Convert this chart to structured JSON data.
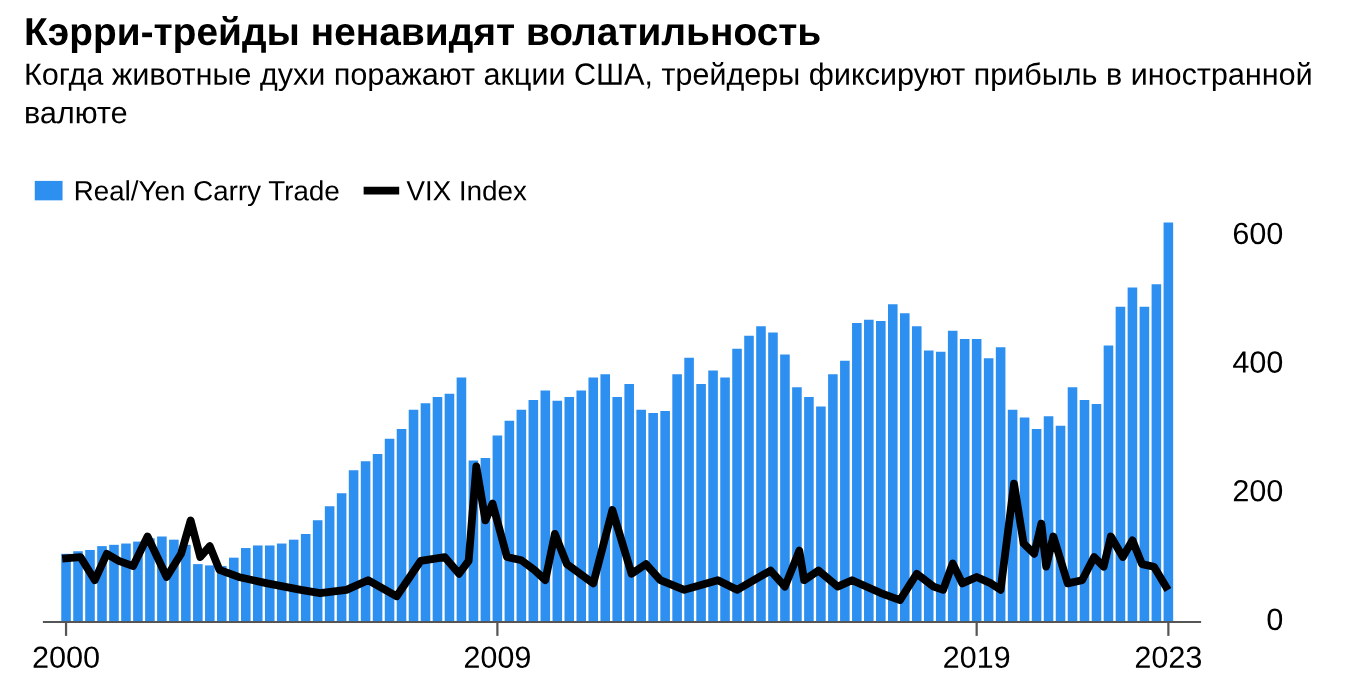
{
  "chart_data": {
    "type": "bar",
    "title": "Кэрри-трейды ненавидят волатильность",
    "subtitle": "Когда животные духи поражают акции США, трейдеры фиксируют прибыль в иностранной валюте",
    "xlim": [
      1999.54,
      2023.66
    ],
    "xticks": [
      2000,
      2009,
      2019,
      2023
    ],
    "ylim": [
      0,
      625
    ],
    "yticks": [
      0,
      200,
      400,
      600
    ],
    "grid": false,
    "legend": "top left",
    "series": [
      {
        "name": "Real/Yen Carry Trade",
        "color": "#2d8ff0",
        "x": [
          2000.0,
          2000.25,
          2000.5,
          2000.75,
          2001.0,
          2001.25,
          2001.5,
          2001.75,
          2002.0,
          2002.25,
          2002.5,
          2002.75,
          2003.0,
          2003.25,
          2003.5,
          2003.75,
          2004.0,
          2004.25,
          2004.5,
          2004.75,
          2005.0,
          2005.25,
          2005.5,
          2005.75,
          2006.0,
          2006.25,
          2006.5,
          2006.75,
          2007.0,
          2007.25,
          2007.5,
          2007.75,
          2008.0,
          2008.25,
          2008.5,
          2008.75,
          2009.0,
          2009.25,
          2009.5,
          2009.75,
          2010.0,
          2010.25,
          2010.5,
          2010.75,
          2011.0,
          2011.25,
          2011.5,
          2011.75,
          2012.0,
          2012.25,
          2012.5,
          2012.75,
          2013.0,
          2013.25,
          2013.5,
          2013.75,
          2014.0,
          2014.25,
          2014.5,
          2014.75,
          2015.0,
          2015.25,
          2015.5,
          2015.75,
          2016.0,
          2016.25,
          2016.5,
          2016.75,
          2017.0,
          2017.25,
          2017.5,
          2017.75,
          2018.0,
          2018.25,
          2018.5,
          2018.75,
          2019.0,
          2019.25,
          2019.5,
          2019.75,
          2020.0,
          2020.25,
          2020.5,
          2020.75,
          2021.0,
          2021.25,
          2021.5,
          2021.75,
          2022.0,
          2022.25,
          2022.5,
          2022.75,
          2023.0
        ],
        "values": [
          106,
          110,
          112,
          118,
          120,
          122,
          125,
          130,
          133,
          128,
          120,
          90,
          88,
          87,
          100,
          115,
          119,
          119,
          122,
          128,
          137,
          158,
          180,
          200,
          236,
          250,
          261,
          285,
          300,
          330,
          340,
          350,
          355,
          380,
          251,
          255,
          290,
          313,
          330,
          345,
          360,
          344,
          350,
          360,
          380,
          385,
          350,
          370,
          330,
          325,
          328,
          385,
          411,
          370,
          391,
          380,
          425,
          445,
          460,
          450,
          416,
          365,
          350,
          335,
          385,
          406,
          465,
          470,
          468,
          494,
          480,
          460,
          422,
          420,
          453,
          440,
          440,
          410,
          427,
          330,
          318,
          300,
          320,
          305,
          365,
          345,
          339,
          430,
          490,
          520,
          490,
          525,
          621
        ]
      },
      {
        "name": "VIX Index",
        "type": "line",
        "color": "#000000",
        "x": [
          2000.0,
          2000.3,
          2000.6,
          2000.85,
          2001.1,
          2001.4,
          2001.7,
          2002.1,
          2002.4,
          2002.6,
          2002.8,
          2003.0,
          2003.2,
          2003.6,
          2004.2,
          2004.9,
          2005.3,
          2005.85,
          2006.3,
          2006.9,
          2007.4,
          2007.9,
          2008.2,
          2008.4,
          2008.56,
          2008.75,
          2008.9,
          2009.2,
          2009.5,
          2009.77,
          2010.0,
          2010.2,
          2010.45,
          2011.0,
          2011.4,
          2011.8,
          2012.1,
          2012.4,
          2012.9,
          2013.6,
          2014.0,
          2014.7,
          2015.0,
          2015.3,
          2015.4,
          2015.7,
          2016.1,
          2016.4,
          2017.0,
          2017.4,
          2017.75,
          2018.1,
          2018.3,
          2018.5,
          2018.7,
          2019.0,
          2019.3,
          2019.5,
          2019.78,
          2019.98,
          2020.2,
          2020.35,
          2020.45,
          2020.6,
          2020.9,
          2021.2,
          2021.45,
          2021.65,
          2021.8,
          2022.05,
          2022.25,
          2022.45,
          2022.7,
          2022.95
        ],
        "values": [
          99,
          101,
          65,
          106,
          95,
          87,
          133,
          70,
          106,
          158,
          101,
          118,
          81,
          70,
          60,
          50,
          45,
          50,
          65,
          40,
          95,
          101,
          75,
          95,
          242,
          158,
          184,
          101,
          96,
          81,
          65,
          137,
          90,
          60,
          174,
          75,
          90,
          65,
          50,
          65,
          50,
          80,
          55,
          111,
          65,
          80,
          55,
          65,
          45,
          34,
          75,
          55,
          50,
          91,
          60,
          70,
          60,
          50,
          215,
          122,
          106,
          153,
          86,
          133,
          60,
          65,
          101,
          86,
          133,
          101,
          127,
          90,
          86,
          55
        ]
      }
    ]
  }
}
